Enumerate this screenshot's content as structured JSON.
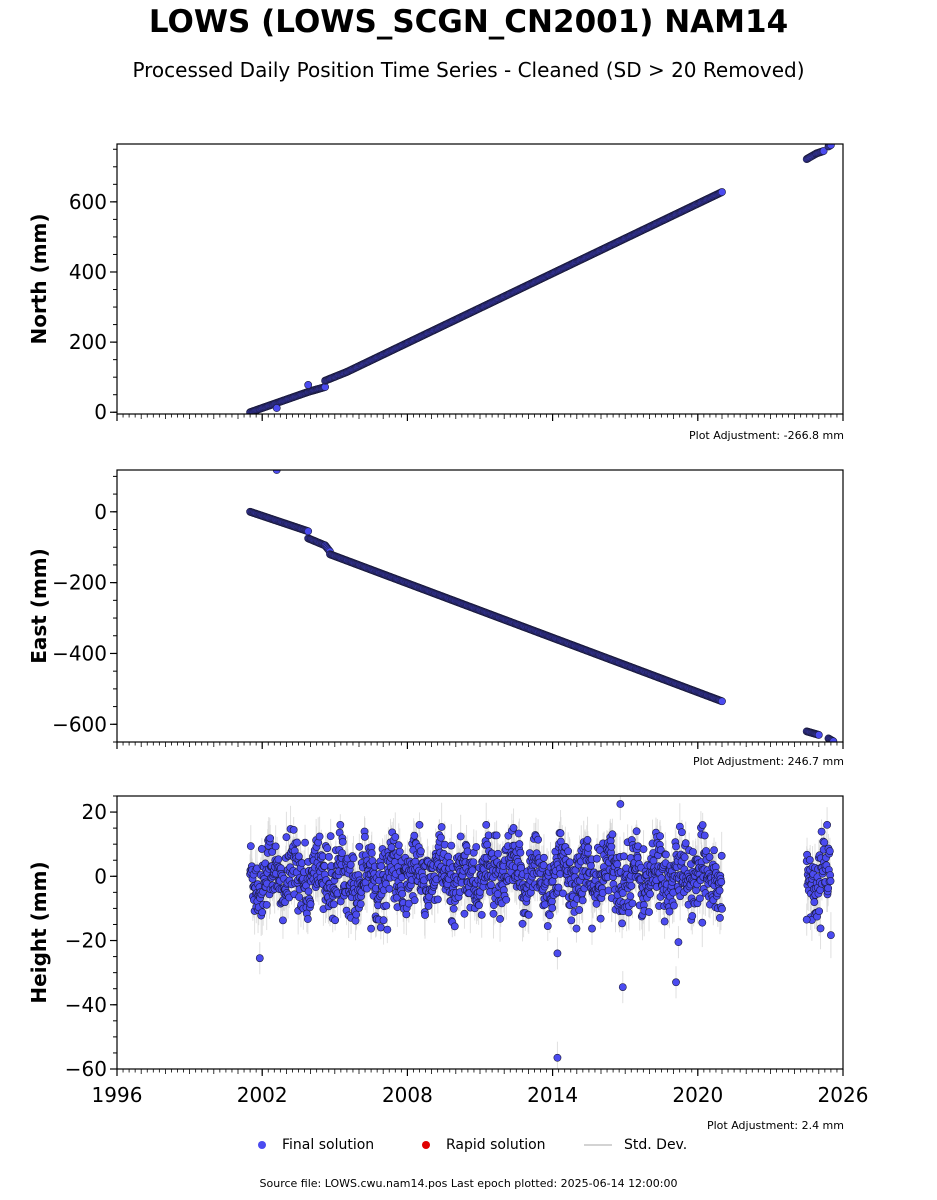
{
  "title": "LOWS (LOWS_SCGN_CN2001) NAM14",
  "subtitle": "Processed Daily Position Time Series - Cleaned (SD > 20 Removed)",
  "chart_data": [
    {
      "type": "scatter",
      "ylabel": "North (mm)",
      "ylim": [
        -5,
        765
      ],
      "yticks": [
        0,
        200,
        400,
        600
      ],
      "xlim": [
        1996,
        2026
      ],
      "xticks": [
        1996,
        2002,
        2008,
        2014,
        2020,
        2026
      ],
      "adjustment": "Plot Adjustment: -266.8 mm",
      "segments": [
        {
          "x": [
            2001.5,
            2003.9
          ],
          "y": [
            0,
            58
          ]
        },
        {
          "x": [
            2003.9,
            2004.6
          ],
          "y": [
            58,
            72
          ]
        },
        {
          "x": [
            2004.6,
            2005.5
          ],
          "y": [
            90,
            115
          ]
        },
        {
          "x": [
            2005.5,
            2021.0
          ],
          "y": [
            115,
            628
          ]
        },
        {
          "x": [
            2024.5,
            2024.9
          ],
          "y": [
            722,
            738
          ]
        },
        {
          "x": [
            2024.9,
            2025.2
          ],
          "y": [
            738,
            745
          ]
        },
        {
          "x": [
            2025.4,
            2025.5
          ],
          "y": [
            758,
            762
          ]
        }
      ],
      "outliers": [
        {
          "x": 2002.6,
          "y": 12
        },
        {
          "x": 2003.9,
          "y": 78
        }
      ]
    },
    {
      "type": "scatter",
      "ylabel": "East (mm)",
      "ylim": [
        -650,
        118
      ],
      "yticks": [
        -600,
        -400,
        -200,
        0
      ],
      "xlim": [
        1996,
        2026
      ],
      "xticks": [
        1996,
        2002,
        2008,
        2014,
        2020,
        2026
      ],
      "adjustment": "Plot Adjustment: 246.7 mm",
      "segments": [
        {
          "x": [
            2001.5,
            2003.9
          ],
          "y": [
            0,
            -55
          ]
        },
        {
          "x": [
            2003.9,
            2004.6
          ],
          "y": [
            -75,
            -95
          ]
        },
        {
          "x": [
            2004.6,
            2004.8
          ],
          "y": [
            -95,
            -112
          ]
        },
        {
          "x": [
            2004.8,
            2021.0
          ],
          "y": [
            -120,
            -535
          ]
        },
        {
          "x": [
            2024.5,
            2025.0
          ],
          "y": [
            -620,
            -630
          ]
        },
        {
          "x": [
            2025.4,
            2025.6
          ],
          "y": [
            -640,
            -648
          ]
        }
      ],
      "outliers": [
        {
          "x": 2002.6,
          "y": 118
        }
      ]
    },
    {
      "type": "scatter",
      "ylabel": "Height (mm)",
      "ylim": [
        -60,
        25
      ],
      "yticks": [
        -60,
        -40,
        -20,
        0,
        20
      ],
      "xlim": [
        1996,
        2026
      ],
      "xticks": [
        1996,
        2002,
        2008,
        2014,
        2020,
        2026
      ],
      "xticklabels": [
        "1996",
        "2002",
        "2008",
        "2014",
        "2020",
        "2026"
      ],
      "adjustment": "Plot Adjustment: 2.4 mm",
      "ranges": [
        [
          2001.5,
          2021.0
        ],
        [
          2024.5,
          2025.5
        ]
      ],
      "scatter_sd": 5.5,
      "annual_amplitude": 4,
      "outliers": [
        {
          "x": 2001.9,
          "y": -25.5
        },
        {
          "x": 2014.2,
          "y": -56.5
        },
        {
          "x": 2014.2,
          "y": -24
        },
        {
          "x": 2016.9,
          "y": -34.5
        },
        {
          "x": 2016.8,
          "y": 22.5
        },
        {
          "x": 2019.1,
          "y": -33
        },
        {
          "x": 2019.2,
          "y": -20.5
        },
        {
          "x": 2024.5,
          "y": -13.5
        }
      ]
    }
  ],
  "legend": {
    "final": "Final solution",
    "rapid": "Rapid solution",
    "stddev": "Std. Dev."
  },
  "colors": {
    "final": "#4b4bf0",
    "final_edge": "#1a1a3a",
    "rapid": "#e00000",
    "stddev": "#d3d3d3"
  },
  "source": "Source file: LOWS.cwu.nam14.pos  Last epoch plotted: 2025-06-14 12:00:00"
}
